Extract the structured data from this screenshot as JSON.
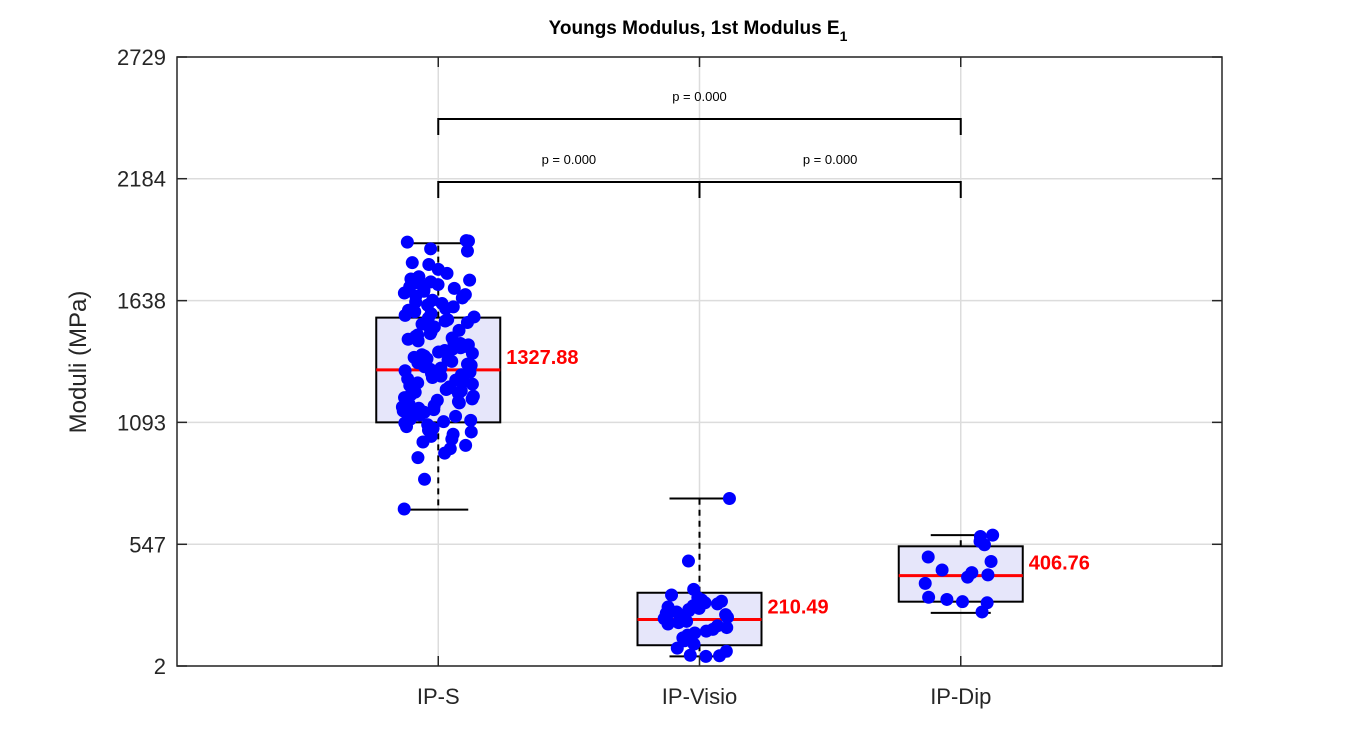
{
  "chart_data": {
    "type": "box",
    "title": "Youngs Modulus, 1st Modulus E",
    "title_subscript": "1",
    "xlabel": "",
    "ylabel": "Moduli (MPa)",
    "categories": [
      "IP-S",
      "IP-Visio",
      "IP-Dip"
    ],
    "ylim": [
      2,
      2729
    ],
    "yticks": [
      2,
      547,
      1093,
      1638,
      2184,
      2729
    ],
    "grid": true,
    "colors": {
      "box_fill": "#e6e6fa",
      "median": "#ff0000",
      "points": "#0000ff",
      "grid": "#dcdcdc",
      "axes": "#262626"
    },
    "boxes": [
      {
        "name": "IP-S",
        "median": 1327.88,
        "median_label": "1327.88",
        "q1": 1093,
        "q3": 1562,
        "whisker_low": 702,
        "whisker_high": 1895,
        "points": [
          1907,
          1905,
          1900,
          1870,
          1860,
          1808,
          1800,
          1778,
          1760,
          1745,
          1735,
          1730,
          1722,
          1718,
          1710,
          1705,
          1700,
          1693,
          1688,
          1680,
          1672,
          1665,
          1658,
          1650,
          1640,
          1632,
          1625,
          1618,
          1610,
          1602,
          1595,
          1588,
          1580,
          1572,
          1565,
          1560,
          1553,
          1547,
          1540,
          1533,
          1526,
          1520,
          1512,
          1505,
          1498,
          1490,
          1484,
          1478,
          1471,
          1465,
          1458,
          1452,
          1446,
          1440,
          1433,
          1427,
          1421,
          1415,
          1408,
          1402,
          1396,
          1390,
          1384,
          1378,
          1372,
          1366,
          1360,
          1354,
          1348,
          1342,
          1336,
          1330,
          1324,
          1318,
          1312,
          1306,
          1300,
          1294,
          1288,
          1282,
          1276,
          1270,
          1264,
          1258,
          1252,
          1246,
          1240,
          1234,
          1228,
          1222,
          1216,
          1210,
          1204,
          1198,
          1192,
          1186,
          1180,
          1174,
          1168,
          1162,
          1156,
          1150,
          1144,
          1138,
          1132,
          1126,
          1120,
          1114,
          1108,
          1102,
          1096,
          1090,
          1082,
          1074,
          1066,
          1058,
          1050,
          1040,
          1030,
          1018,
          1005,
          990,
          975,
          955,
          935,
          838,
          705
        ]
      },
      {
        "name": "IP-Visio",
        "median": 210.49,
        "median_label": "210.49",
        "q1": 95,
        "q3": 330,
        "whisker_low": 45,
        "whisker_high": 752,
        "points": [
          752,
          472,
          345,
          320,
          308,
          298,
          292,
          285,
          280,
          272,
          266,
          260,
          255,
          250,
          244,
          238,
          232,
          226,
          220,
          214,
          208,
          202,
          196,
          190,
          182,
          174,
          166,
          158,
          150,
          140,
          128,
          115,
          100,
          82,
          68,
          50,
          48,
          45
        ]
      },
      {
        "name": "IP-Dip",
        "median": 406.76,
        "median_label": "406.76",
        "q1": 290,
        "q3": 538,
        "whisker_low": 240,
        "whisker_high": 588,
        "points": [
          588,
          582,
          560,
          545,
          490,
          470,
          432,
          420,
          410,
          400,
          372,
          310,
          300,
          290,
          285,
          244
        ]
      }
    ],
    "comparisons": [
      {
        "from": "IP-S",
        "to": "IP-Dip",
        "label": "p = 0.000",
        "level": 2
      },
      {
        "from": "IP-S",
        "to": "IP-Visio",
        "label": "p = 0.000",
        "level": 1
      },
      {
        "from": "IP-Visio",
        "to": "IP-Dip",
        "label": "p = 0.000",
        "level": 1
      }
    ]
  }
}
